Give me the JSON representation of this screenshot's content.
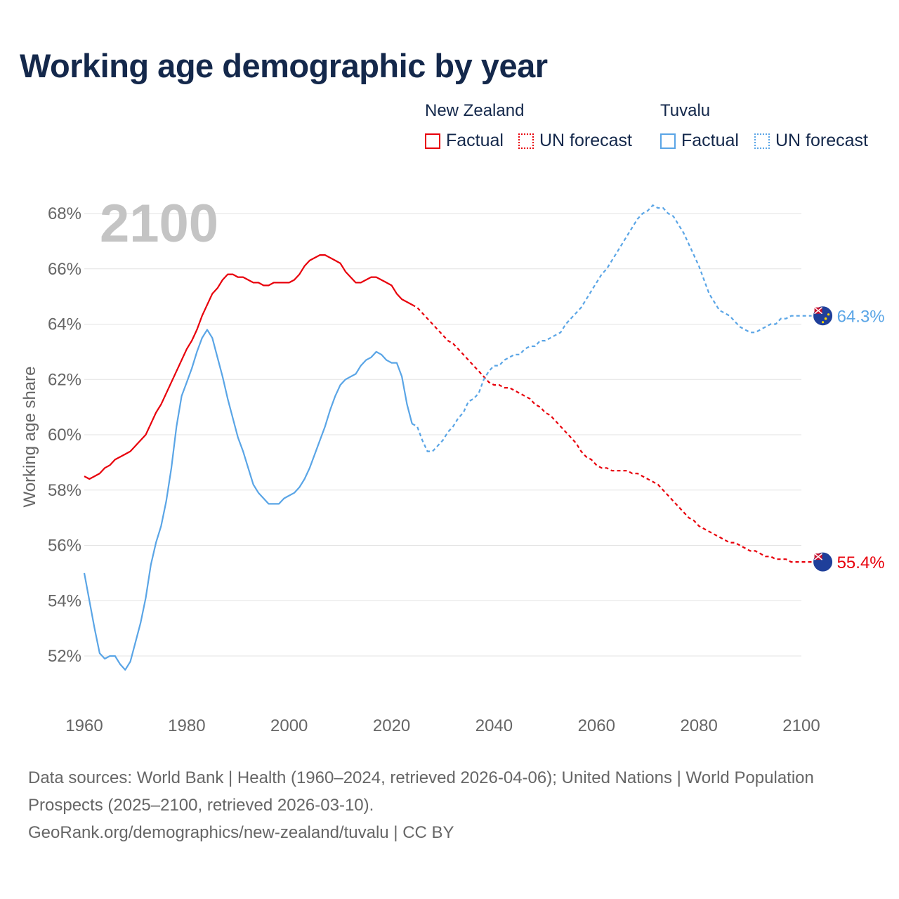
{
  "title": "Working age demographic by year",
  "legend": {
    "groups": [
      {
        "name": "New Zealand",
        "factual": "Factual",
        "forecast": "UN forecast",
        "color": "#e8000b"
      },
      {
        "name": "Tuvalu",
        "factual": "Factual",
        "forecast": "UN forecast",
        "color": "#5aa5e6"
      }
    ]
  },
  "chart_data": {
    "type": "line",
    "ylabel": "Working age share",
    "xlabel": "",
    "year_watermark": "2100",
    "xlim": [
      1960,
      2100
    ],
    "ylim": [
      50.5,
      68.8
    ],
    "x_ticks": [
      1960,
      1980,
      2000,
      2020,
      2040,
      2060,
      2080,
      2100
    ],
    "y_ticks": [
      52,
      54,
      56,
      58,
      60,
      62,
      64,
      66,
      68
    ],
    "y_tick_labels": [
      "52%",
      "54%",
      "56%",
      "58%",
      "60%",
      "62%",
      "64%",
      "66%",
      "68%"
    ],
    "factual_end_year": 2024,
    "series": [
      {
        "name": "New Zealand",
        "color": "#e8000b",
        "end_label": "55.4%",
        "points": [
          [
            1960,
            58.5
          ],
          [
            1961,
            58.4
          ],
          [
            1962,
            58.5
          ],
          [
            1963,
            58.6
          ],
          [
            1964,
            58.8
          ],
          [
            1965,
            58.9
          ],
          [
            1966,
            59.1
          ],
          [
            1967,
            59.2
          ],
          [
            1968,
            59.3
          ],
          [
            1969,
            59.4
          ],
          [
            1970,
            59.6
          ],
          [
            1971,
            59.8
          ],
          [
            1972,
            60.0
          ],
          [
            1973,
            60.4
          ],
          [
            1974,
            60.8
          ],
          [
            1975,
            61.1
          ],
          [
            1976,
            61.5
          ],
          [
            1977,
            61.9
          ],
          [
            1978,
            62.3
          ],
          [
            1979,
            62.7
          ],
          [
            1980,
            63.1
          ],
          [
            1981,
            63.4
          ],
          [
            1982,
            63.8
          ],
          [
            1983,
            64.3
          ],
          [
            1984,
            64.7
          ],
          [
            1985,
            65.1
          ],
          [
            1986,
            65.3
          ],
          [
            1987,
            65.6
          ],
          [
            1988,
            65.8
          ],
          [
            1989,
            65.8
          ],
          [
            1990,
            65.7
          ],
          [
            1991,
            65.7
          ],
          [
            1992,
            65.6
          ],
          [
            1993,
            65.5
          ],
          [
            1994,
            65.5
          ],
          [
            1995,
            65.4
          ],
          [
            1996,
            65.4
          ],
          [
            1997,
            65.5
          ],
          [
            1998,
            65.5
          ],
          [
            1999,
            65.5
          ],
          [
            2000,
            65.5
          ],
          [
            2001,
            65.6
          ],
          [
            2002,
            65.8
          ],
          [
            2003,
            66.1
          ],
          [
            2004,
            66.3
          ],
          [
            2005,
            66.4
          ],
          [
            2006,
            66.5
          ],
          [
            2007,
            66.5
          ],
          [
            2008,
            66.4
          ],
          [
            2009,
            66.3
          ],
          [
            2010,
            66.2
          ],
          [
            2011,
            65.9
          ],
          [
            2012,
            65.7
          ],
          [
            2013,
            65.5
          ],
          [
            2014,
            65.5
          ],
          [
            2015,
            65.6
          ],
          [
            2016,
            65.7
          ],
          [
            2017,
            65.7
          ],
          [
            2018,
            65.6
          ],
          [
            2019,
            65.5
          ],
          [
            2020,
            65.4
          ],
          [
            2021,
            65.1
          ],
          [
            2022,
            64.9
          ],
          [
            2023,
            64.8
          ],
          [
            2024,
            64.7
          ],
          [
            2025,
            64.6
          ],
          [
            2026,
            64.4
          ],
          [
            2027,
            64.2
          ],
          [
            2028,
            64.0
          ],
          [
            2029,
            63.8
          ],
          [
            2030,
            63.6
          ],
          [
            2031,
            63.4
          ],
          [
            2032,
            63.3
          ],
          [
            2033,
            63.1
          ],
          [
            2034,
            62.9
          ],
          [
            2035,
            62.7
          ],
          [
            2036,
            62.5
          ],
          [
            2037,
            62.3
          ],
          [
            2038,
            62.1
          ],
          [
            2039,
            61.9
          ],
          [
            2040,
            61.8
          ],
          [
            2041,
            61.8
          ],
          [
            2042,
            61.7
          ],
          [
            2043,
            61.7
          ],
          [
            2044,
            61.6
          ],
          [
            2045,
            61.5
          ],
          [
            2046,
            61.4
          ],
          [
            2047,
            61.3
          ],
          [
            2048,
            61.1
          ],
          [
            2049,
            61.0
          ],
          [
            2050,
            60.8
          ],
          [
            2051,
            60.7
          ],
          [
            2052,
            60.5
          ],
          [
            2053,
            60.3
          ],
          [
            2054,
            60.1
          ],
          [
            2055,
            59.9
          ],
          [
            2056,
            59.7
          ],
          [
            2057,
            59.4
          ],
          [
            2058,
            59.2
          ],
          [
            2059,
            59.1
          ],
          [
            2060,
            58.9
          ],
          [
            2061,
            58.8
          ],
          [
            2062,
            58.8
          ],
          [
            2063,
            58.7
          ],
          [
            2064,
            58.7
          ],
          [
            2065,
            58.7
          ],
          [
            2066,
            58.7
          ],
          [
            2067,
            58.6
          ],
          [
            2068,
            58.6
          ],
          [
            2069,
            58.5
          ],
          [
            2070,
            58.4
          ],
          [
            2071,
            58.3
          ],
          [
            2072,
            58.2
          ],
          [
            2073,
            58.0
          ],
          [
            2074,
            57.8
          ],
          [
            2075,
            57.6
          ],
          [
            2076,
            57.4
          ],
          [
            2077,
            57.2
          ],
          [
            2078,
            57.0
          ],
          [
            2079,
            56.9
          ],
          [
            2080,
            56.7
          ],
          [
            2081,
            56.6
          ],
          [
            2082,
            56.5
          ],
          [
            2083,
            56.4
          ],
          [
            2084,
            56.3
          ],
          [
            2085,
            56.2
          ],
          [
            2086,
            56.1
          ],
          [
            2087,
            56.1
          ],
          [
            2088,
            56.0
          ],
          [
            2089,
            55.9
          ],
          [
            2090,
            55.8
          ],
          [
            2091,
            55.8
          ],
          [
            2092,
            55.7
          ],
          [
            2093,
            55.6
          ],
          [
            2094,
            55.6
          ],
          [
            2095,
            55.5
          ],
          [
            2096,
            55.5
          ],
          [
            2097,
            55.5
          ],
          [
            2098,
            55.4
          ],
          [
            2099,
            55.4
          ],
          [
            2100,
            55.4
          ],
          [
            2101,
            55.4
          ],
          [
            2102,
            55.4
          ]
        ]
      },
      {
        "name": "Tuvalu",
        "color": "#5aa5e6",
        "end_label": "64.3%",
        "points": [
          [
            1960,
            55.0
          ],
          [
            1961,
            54.0
          ],
          [
            1962,
            53.0
          ],
          [
            1963,
            52.1
          ],
          [
            1964,
            51.9
          ],
          [
            1965,
            52.0
          ],
          [
            1966,
            52.0
          ],
          [
            1967,
            51.7
          ],
          [
            1968,
            51.5
          ],
          [
            1969,
            51.8
          ],
          [
            1970,
            52.5
          ],
          [
            1971,
            53.2
          ],
          [
            1972,
            54.1
          ],
          [
            1973,
            55.3
          ],
          [
            1974,
            56.1
          ],
          [
            1975,
            56.7
          ],
          [
            1976,
            57.6
          ],
          [
            1977,
            58.8
          ],
          [
            1978,
            60.3
          ],
          [
            1979,
            61.4
          ],
          [
            1980,
            61.9
          ],
          [
            1981,
            62.4
          ],
          [
            1982,
            63.0
          ],
          [
            1983,
            63.5
          ],
          [
            1984,
            63.8
          ],
          [
            1985,
            63.5
          ],
          [
            1986,
            62.8
          ],
          [
            1987,
            62.1
          ],
          [
            1988,
            61.3
          ],
          [
            1989,
            60.6
          ],
          [
            1990,
            59.9
          ],
          [
            1991,
            59.4
          ],
          [
            1992,
            58.8
          ],
          [
            1993,
            58.2
          ],
          [
            1994,
            57.9
          ],
          [
            1995,
            57.7
          ],
          [
            1996,
            57.5
          ],
          [
            1997,
            57.5
          ],
          [
            1998,
            57.5
          ],
          [
            1999,
            57.7
          ],
          [
            2000,
            57.8
          ],
          [
            2001,
            57.9
          ],
          [
            2002,
            58.1
          ],
          [
            2003,
            58.4
          ],
          [
            2004,
            58.8
          ],
          [
            2005,
            59.3
          ],
          [
            2006,
            59.8
          ],
          [
            2007,
            60.3
          ],
          [
            2008,
            60.9
          ],
          [
            2009,
            61.4
          ],
          [
            2010,
            61.8
          ],
          [
            2011,
            62.0
          ],
          [
            2012,
            62.1
          ],
          [
            2013,
            62.2
          ],
          [
            2014,
            62.5
          ],
          [
            2015,
            62.7
          ],
          [
            2016,
            62.8
          ],
          [
            2017,
            63.0
          ],
          [
            2018,
            62.9
          ],
          [
            2019,
            62.7
          ],
          [
            2020,
            62.6
          ],
          [
            2021,
            62.6
          ],
          [
            2022,
            62.1
          ],
          [
            2023,
            61.1
          ],
          [
            2024,
            60.4
          ],
          [
            2025,
            60.3
          ],
          [
            2026,
            59.8
          ],
          [
            2027,
            59.4
          ],
          [
            2028,
            59.4
          ],
          [
            2029,
            59.6
          ],
          [
            2030,
            59.8
          ],
          [
            2031,
            60.1
          ],
          [
            2032,
            60.3
          ],
          [
            2033,
            60.6
          ],
          [
            2034,
            60.8
          ],
          [
            2035,
            61.2
          ],
          [
            2036,
            61.3
          ],
          [
            2037,
            61.5
          ],
          [
            2038,
            62.0
          ],
          [
            2039,
            62.3
          ],
          [
            2040,
            62.5
          ],
          [
            2041,
            62.5
          ],
          [
            2042,
            62.7
          ],
          [
            2043,
            62.8
          ],
          [
            2044,
            62.9
          ],
          [
            2045,
            62.9
          ],
          [
            2046,
            63.1
          ],
          [
            2047,
            63.2
          ],
          [
            2048,
            63.2
          ],
          [
            2049,
            63.4
          ],
          [
            2050,
            63.4
          ],
          [
            2051,
            63.5
          ],
          [
            2052,
            63.6
          ],
          [
            2053,
            63.7
          ],
          [
            2054,
            64.0
          ],
          [
            2055,
            64.2
          ],
          [
            2056,
            64.4
          ],
          [
            2057,
            64.6
          ],
          [
            2058,
            64.9
          ],
          [
            2059,
            65.2
          ],
          [
            2060,
            65.5
          ],
          [
            2061,
            65.8
          ],
          [
            2062,
            66.0
          ],
          [
            2063,
            66.3
          ],
          [
            2064,
            66.6
          ],
          [
            2065,
            66.9
          ],
          [
            2066,
            67.2
          ],
          [
            2067,
            67.5
          ],
          [
            2068,
            67.8
          ],
          [
            2069,
            68.0
          ],
          [
            2070,
            68.1
          ],
          [
            2071,
            68.3
          ],
          [
            2072,
            68.2
          ],
          [
            2073,
            68.2
          ],
          [
            2074,
            68.0
          ],
          [
            2075,
            67.9
          ],
          [
            2076,
            67.6
          ],
          [
            2077,
            67.3
          ],
          [
            2078,
            66.9
          ],
          [
            2079,
            66.5
          ],
          [
            2080,
            66.1
          ],
          [
            2081,
            65.6
          ],
          [
            2082,
            65.1
          ],
          [
            2083,
            64.8
          ],
          [
            2084,
            64.5
          ],
          [
            2085,
            64.4
          ],
          [
            2086,
            64.3
          ],
          [
            2087,
            64.1
          ],
          [
            2088,
            63.9
          ],
          [
            2089,
            63.8
          ],
          [
            2090,
            63.7
          ],
          [
            2091,
            63.7
          ],
          [
            2092,
            63.8
          ],
          [
            2093,
            63.9
          ],
          [
            2094,
            64.0
          ],
          [
            2095,
            64.0
          ],
          [
            2096,
            64.2
          ],
          [
            2097,
            64.2
          ],
          [
            2098,
            64.3
          ],
          [
            2099,
            64.3
          ],
          [
            2100,
            64.3
          ],
          [
            2101,
            64.3
          ],
          [
            2102,
            64.3
          ]
        ]
      }
    ]
  },
  "footer": {
    "line1": "Data sources: World Bank | Health (1960–2024, retrieved 2026-04-06); United Nations | World Population Prospects (2025–2100, retrieved 2026-03-10).",
    "line2": "GeoRank.org/demographics/new-zealand/tuvalu | CC BY"
  }
}
